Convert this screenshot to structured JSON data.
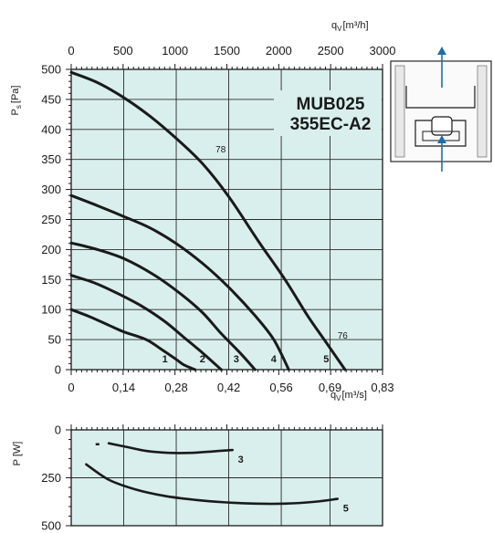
{
  "chart_data": [
    {
      "type": "line",
      "name": "fan-performance",
      "title": "MUB025\n355EC-A2",
      "title_lines": [
        "MUB025",
        "355EC-A2"
      ],
      "ylabel": "P",
      "ylabel_sub": "s",
      "ylabel_unit": "[Pa]",
      "ylim": [
        0,
        500
      ],
      "yticks": [
        "0",
        "50",
        "100",
        "150",
        "200",
        "250",
        "300",
        "350",
        "400",
        "450",
        "500"
      ],
      "xlim": [
        0,
        0.83
      ],
      "xticks": [
        "0",
        "0,14",
        "0,28",
        "0,42",
        "0,56",
        "0,69",
        "0,83"
      ],
      "xtick_values": [
        0,
        0.14,
        0.28,
        0.42,
        0.56,
        0.69,
        0.83
      ],
      "xlabel": "q",
      "xlabel_sub": "V",
      "xlabel_unit": "[m³/s]",
      "top_xlabel": "q",
      "top_xlabel_sub": "V",
      "top_xlabel_unit": "[m³/h]",
      "top_xlim": [
        0,
        3000
      ],
      "top_xticks": [
        "0",
        "500",
        "1000",
        "1500",
        "2000",
        "2500",
        "3000"
      ],
      "grid": true,
      "background": "#d9efed",
      "series": [
        {
          "name": "1",
          "points": [
            [
              0,
              100
            ],
            [
              0.05,
              88
            ],
            [
              0.1,
              74
            ],
            [
              0.14,
              63
            ],
            [
              0.2,
              50
            ],
            [
              0.24,
              34
            ],
            [
              0.28,
              17
            ],
            [
              0.3,
              8
            ],
            [
              0.33,
              0
            ]
          ]
        },
        {
          "name": "2",
          "points": [
            [
              0,
              157
            ],
            [
              0.06,
              145
            ],
            [
              0.12,
              128
            ],
            [
              0.19,
              105
            ],
            [
              0.25,
              80
            ],
            [
              0.3,
              54
            ],
            [
              0.35,
              28
            ],
            [
              0.4,
              0
            ]
          ]
        },
        {
          "name": "3",
          "points": [
            [
              0,
              211
            ],
            [
              0.07,
              200
            ],
            [
              0.14,
              185
            ],
            [
              0.22,
              158
            ],
            [
              0.29,
              127
            ],
            [
              0.35,
              95
            ],
            [
              0.4,
              60
            ],
            [
              0.45,
              28
            ],
            [
              0.49,
              0
            ]
          ]
        },
        {
          "name": "4",
          "points": [
            [
              0,
              290
            ],
            [
              0.07,
              273
            ],
            [
              0.14,
              255
            ],
            [
              0.21,
              236
            ],
            [
              0.28,
              210
            ],
            [
              0.35,
              177
            ],
            [
              0.42,
              137
            ],
            [
              0.49,
              90
            ],
            [
              0.54,
              50
            ],
            [
              0.58,
              0
            ]
          ]
        },
        {
          "name": "5",
          "points": [
            [
              0,
              495
            ],
            [
              0.07,
              478
            ],
            [
              0.14,
              453
            ],
            [
              0.21,
              422
            ],
            [
              0.28,
              385
            ],
            [
              0.35,
              343
            ],
            [
              0.42,
              288
            ],
            [
              0.5,
              213
            ],
            [
              0.57,
              150
            ],
            [
              0.63,
              90
            ],
            [
              0.68,
              45
            ],
            [
              0.73,
              0
            ]
          ]
        }
      ],
      "annotations": [
        {
          "text": "78",
          "x": 0.385,
          "y": 362
        },
        {
          "text": "76",
          "x": 0.71,
          "y": 52
        }
      ],
      "curve_labels": [
        {
          "text": "1",
          "x": 0.25,
          "y": 12
        },
        {
          "text": "2",
          "x": 0.35,
          "y": 12
        },
        {
          "text": "3",
          "x": 0.44,
          "y": 12
        },
        {
          "text": "4",
          "x": 0.54,
          "y": 12
        },
        {
          "text": "5",
          "x": 0.68,
          "y": 12
        }
      ]
    },
    {
      "type": "line",
      "name": "power-consumption",
      "ylabel": "P [W]",
      "ylim": [
        0,
        500
      ],
      "y_inverted": true,
      "yticks": [
        "0",
        "250",
        "500"
      ],
      "xlim": [
        0,
        0.83
      ],
      "grid": true,
      "background": "#d9efed",
      "series": [
        {
          "name": "3",
          "points": [
            [
              0.1,
              70
            ],
            [
              0.15,
              90
            ],
            [
              0.2,
              110
            ],
            [
              0.26,
              120
            ],
            [
              0.32,
              120
            ],
            [
              0.38,
              112
            ],
            [
              0.43,
              105
            ]
          ]
        },
        {
          "name": "5",
          "points": [
            [
              0.04,
              180
            ],
            [
              0.1,
              260
            ],
            [
              0.17,
              310
            ],
            [
              0.25,
              345
            ],
            [
              0.33,
              365
            ],
            [
              0.41,
              378
            ],
            [
              0.49,
              385
            ],
            [
              0.57,
              385
            ],
            [
              0.65,
              375
            ],
            [
              0.71,
              360
            ]
          ]
        }
      ],
      "markers": [
        {
          "x": 0.07,
          "y": 75
        }
      ]
    }
  ],
  "colors": {
    "plot_background": "#d9efed",
    "curve": "#1a1a1a",
    "axis": "#1a1a1a",
    "grid": "#2a2a2a",
    "arrow": "#1f6fa8"
  },
  "icons": [
    "airflow-up-arrow-icon",
    "fan-housing-icon"
  ]
}
